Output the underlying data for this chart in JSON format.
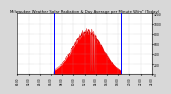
{
  "title": "Milwaukee Weather Solar Radiation & Day Average per Minute W/m² (Today)",
  "title_fontsize": 2.8,
  "background_color": "#d8d8d8",
  "plot_background": "#ffffff",
  "xlim": [
    0,
    1440
  ],
  "ylim": [
    0,
    1200
  ],
  "ylabel_fontsize": 2.2,
  "xlabel_fontsize": 2.0,
  "grid_color": "#aaaaaa",
  "fill_color": "#ff0000",
  "line_color": "#dd0000",
  "blue_line_color": "#0000ff",
  "blue_line_x1": 390,
  "blue_line_x2": 1110,
  "peak_minute": 750,
  "peak_value": 960,
  "num_points": 1440,
  "yticks": [
    0,
    200,
    400,
    600,
    800,
    1000,
    1200
  ],
  "xtick_hours": [
    0,
    2,
    4,
    6,
    8,
    10,
    12,
    14,
    16,
    18,
    20,
    22,
    24
  ]
}
